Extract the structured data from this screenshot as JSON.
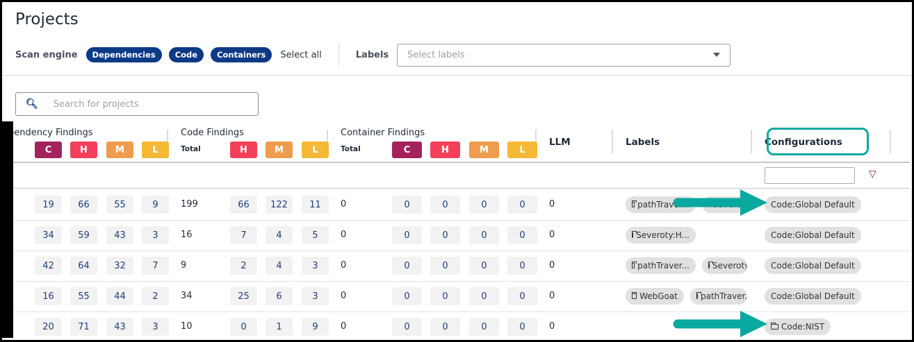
{
  "page": {
    "title": "Projects"
  },
  "filters": {
    "scan_engine_label": "Scan engine",
    "engines": [
      "Dependencies",
      "Code",
      "Containers"
    ],
    "select_all": "Select all",
    "labels_label": "Labels",
    "labels_placeholder": "Select labels"
  },
  "search": {
    "placeholder": "Search for projects"
  },
  "table": {
    "groups": {
      "dependency": "pendency Findings",
      "code": "Code Findings",
      "container": "Container Findings"
    },
    "total_label": "Total",
    "severity": {
      "C": "C",
      "H": "H",
      "M": "M",
      "L": "L"
    },
    "severity_colors": {
      "C": "#a4235c",
      "H": "#f43f5a",
      "M": "#ee9c4e",
      "L": "#f5b935"
    },
    "columns": {
      "llm": "LLM",
      "labels": "Labels",
      "configurations": "Configurations"
    },
    "rows": [
      {
        "dep": [
          "19",
          "66",
          "55",
          "9"
        ],
        "code_total": "199",
        "code": [
          "66",
          "122",
          "11"
        ],
        "cont_total": "0",
        "cont": [
          "0",
          "0",
          "0",
          "0"
        ],
        "llm": "0",
        "labels": [
          "pathTraver...",
          "Severoty..."
        ],
        "config": "Code:Global Default",
        "config_icon": false
      },
      {
        "dep": [
          "34",
          "59",
          "43",
          "3"
        ],
        "code_total": "16",
        "code": [
          "7",
          "4",
          "5"
        ],
        "cont_total": "0",
        "cont": [
          "0",
          "0",
          "0",
          "0"
        ],
        "llm": "0",
        "labels": [
          "Severoty:H..."
        ],
        "config": "Code:Global Default",
        "config_icon": false
      },
      {
        "dep": [
          "42",
          "64",
          "32",
          "7"
        ],
        "code_total": "9",
        "code": [
          "2",
          "4",
          "3"
        ],
        "cont_total": "0",
        "cont": [
          "0",
          "0",
          "0",
          "0"
        ],
        "llm": "0",
        "labels": [
          "pathTraver...",
          "Severoty"
        ],
        "config": "Code:Global Default",
        "config_icon": false
      },
      {
        "dep": [
          "16",
          "55",
          "44",
          "2"
        ],
        "code_total": "34",
        "code": [
          "25",
          "6",
          "3"
        ],
        "cont_total": "0",
        "cont": [
          "0",
          "0",
          "0",
          "0"
        ],
        "llm": "0",
        "labels": [
          "WebGoat",
          "pathTraver..."
        ],
        "config": "Code:Global Default",
        "config_icon": false
      },
      {
        "dep": [
          "20",
          "71",
          "43",
          "3"
        ],
        "code_total": "10",
        "code": [
          "0",
          "1",
          "9"
        ],
        "cont_total": "0",
        "cont": [
          "0",
          "0",
          "0",
          "0"
        ],
        "llm": "0",
        "labels": [],
        "config": "Code:NIST",
        "config_icon": true
      }
    ]
  },
  "annotation_color": "#0aa99f"
}
